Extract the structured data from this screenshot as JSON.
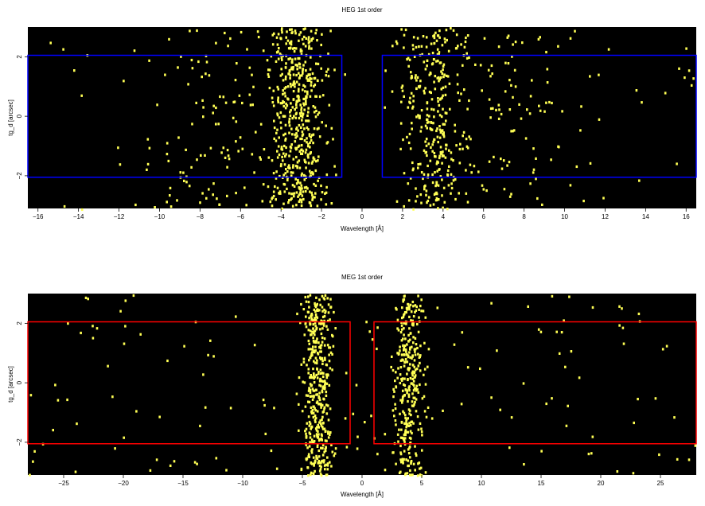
{
  "chart_data": [
    {
      "type": "heatmap",
      "title": "HEG 1st order",
      "xlabel": "Wavelength [Å]",
      "ylabel": "tg_d [arcsec]",
      "xlim": [
        -16.5,
        16.5
      ],
      "ylim": [
        -3.1,
        3.0
      ],
      "xticks": [
        -16,
        -14,
        -12,
        -10,
        -8,
        -6,
        -4,
        -2,
        0,
        2,
        4,
        6,
        8,
        10,
        12,
        14,
        16
      ],
      "yticks": [
        -2,
        0,
        2
      ],
      "background_color": "#000000",
      "pixel_color": "#ffff55",
      "regions": [
        {
          "xmin": -16.5,
          "xmax": -1.0,
          "ymin": -2.05,
          "ymax": 2.05,
          "color": "#0000ff"
        },
        {
          "xmin": 1.0,
          "xmax": 16.5,
          "ymin": -2.05,
          "ymax": 2.05,
          "color": "#0000ff"
        }
      ],
      "event_clusters": [
        {
          "center": -3.2,
          "width": 1.5,
          "count": 520
        },
        {
          "center": 3.5,
          "width": 1.6,
          "count": 340
        },
        {
          "center": -7.5,
          "width": 4.0,
          "count": 110
        },
        {
          "center": 7.5,
          "width": 4.0,
          "count": 90
        }
      ],
      "background_events": 60
    },
    {
      "type": "heatmap",
      "title": "MEG 1st order",
      "xlabel": "Wavelength [Å]",
      "ylabel": "tg_d [arcsec]",
      "xlim": [
        -28,
        28
      ],
      "ylim": [
        -3.1,
        3.0
      ],
      "xticks": [
        -25,
        -20,
        -15,
        -10,
        -5,
        0,
        5,
        10,
        15,
        20,
        25
      ],
      "yticks": [
        -2,
        0,
        2
      ],
      "background_color": "#000000",
      "pixel_color": "#ffff55",
      "regions": [
        {
          "xmin": -28,
          "xmax": -1.0,
          "ymin": -2.05,
          "ymax": 2.05,
          "color": "#ff0000"
        },
        {
          "xmin": 1.0,
          "xmax": 28,
          "ymin": -2.05,
          "ymax": 2.05,
          "color": "#ff0000"
        }
      ],
      "event_clusters": [
        {
          "center": -3.8,
          "width": 1.2,
          "count": 430
        },
        {
          "center": 3.8,
          "width": 1.3,
          "count": 330
        }
      ],
      "background_events": 150
    }
  ]
}
